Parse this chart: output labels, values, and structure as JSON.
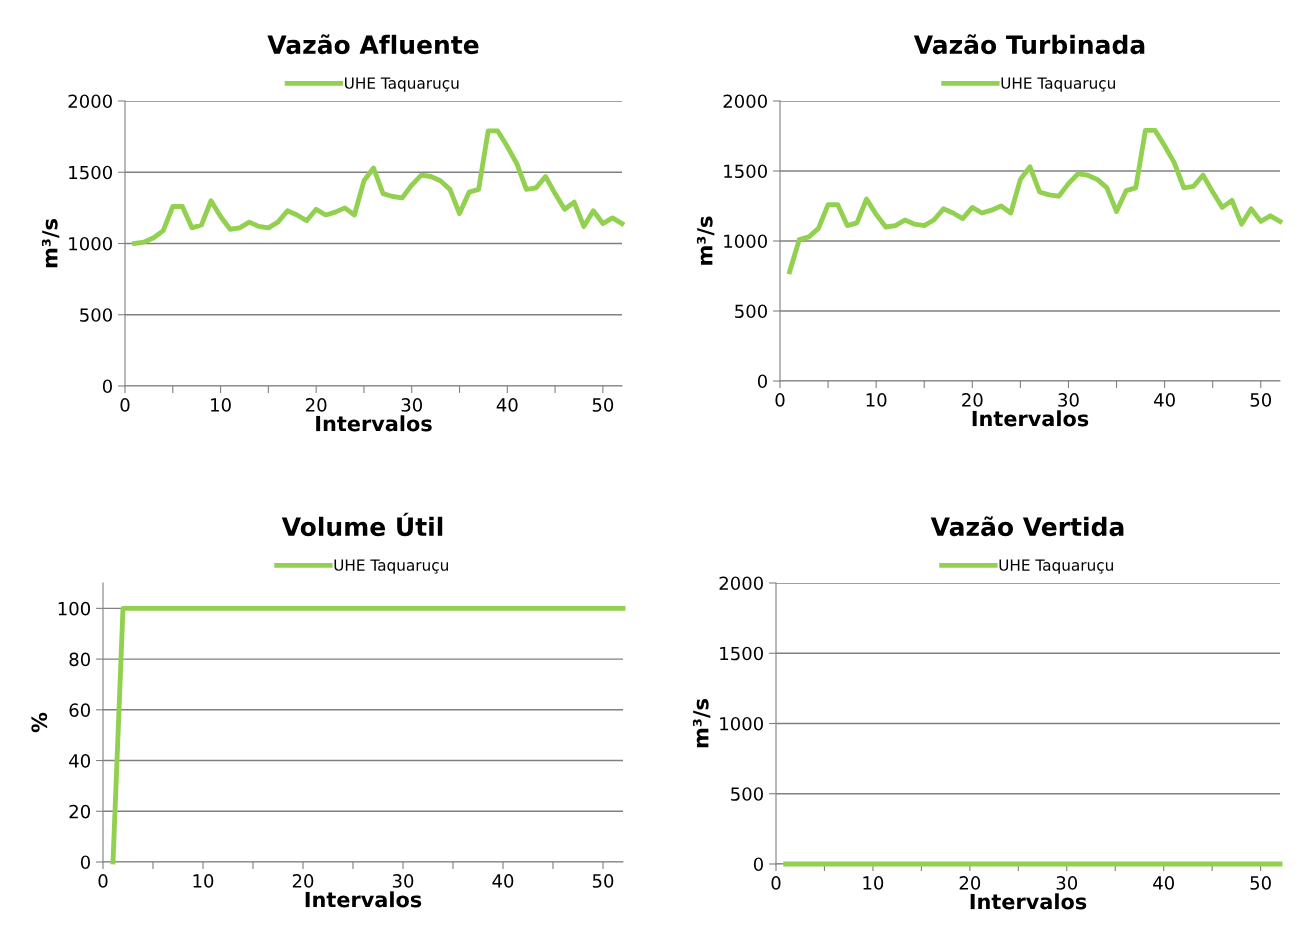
{
  "chart_data": [
    {
      "type": "line",
      "title": "Vazão Afluente",
      "xlabel": "Intervalos",
      "ylabel": "m³/s",
      "x": [
        1,
        2,
        3,
        4,
        5,
        6,
        7,
        8,
        9,
        10,
        11,
        12,
        13,
        14,
        15,
        16,
        17,
        18,
        19,
        20,
        21,
        22,
        23,
        24,
        25,
        26,
        27,
        28,
        29,
        30,
        31,
        32,
        33,
        34,
        35,
        36,
        37,
        38,
        39,
        40,
        41,
        42,
        43,
        44,
        45,
        46,
        47,
        48,
        49,
        50,
        51,
        52
      ],
      "series": [
        {
          "name": "UHE Taquaruçu",
          "color": "#92d050",
          "values": [
            1000,
            1010,
            1040,
            1090,
            1260,
            1260,
            1110,
            1130,
            1300,
            1190,
            1100,
            1110,
            1150,
            1120,
            1110,
            1150,
            1230,
            1200,
            1160,
            1240,
            1200,
            1220,
            1250,
            1200,
            1440,
            1530,
            1350,
            1330,
            1320,
            1410,
            1480,
            1470,
            1440,
            1380,
            1210,
            1360,
            1380,
            1790,
            1790,
            1680,
            1560,
            1380,
            1390,
            1470,
            1350,
            1240,
            1290,
            1120,
            1230,
            1140,
            1180,
            1140
          ]
        }
      ],
      "xlim": [
        0,
        52
      ],
      "xticks": [
        0,
        {
          "value": 5,
          "label": null
        },
        10,
        {
          "value": 15,
          "label": null
        },
        20,
        {
          "value": 25,
          "label": null
        },
        30,
        {
          "value": 35,
          "label": null
        },
        40,
        {
          "value": 45,
          "label": null
        },
        50
      ],
      "ylim": [
        0,
        2000
      ],
      "yticks": [
        0,
        500,
        1000,
        1500,
        2000
      ],
      "grid": "y",
      "legend": "top",
      "marker": "none",
      "line_style": "solid"
    },
    {
      "type": "line",
      "title": "Vazão Turbinada",
      "xlabel": "Intervalos",
      "ylabel": "m³/s",
      "x": [
        1,
        2,
        3,
        4,
        5,
        6,
        7,
        8,
        9,
        10,
        11,
        12,
        13,
        14,
        15,
        16,
        17,
        18,
        19,
        20,
        21,
        22,
        23,
        24,
        25,
        26,
        27,
        28,
        29,
        30,
        31,
        32,
        33,
        34,
        35,
        36,
        37,
        38,
        39,
        40,
        41,
        42,
        43,
        44,
        45,
        46,
        47,
        48,
        49,
        50,
        51,
        52
      ],
      "series": [
        {
          "name": "UHE Taquaruçu",
          "color": "#92d050",
          "values": [
            780,
            1010,
            1030,
            1090,
            1260,
            1260,
            1110,
            1130,
            1300,
            1190,
            1100,
            1110,
            1150,
            1120,
            1110,
            1150,
            1230,
            1200,
            1160,
            1240,
            1200,
            1220,
            1250,
            1200,
            1440,
            1530,
            1350,
            1330,
            1320,
            1410,
            1480,
            1470,
            1440,
            1380,
            1210,
            1360,
            1380,
            1790,
            1790,
            1680,
            1560,
            1380,
            1390,
            1470,
            1350,
            1240,
            1290,
            1120,
            1230,
            1140,
            1180,
            1140
          ]
        }
      ],
      "xlim": [
        0,
        52
      ],
      "xticks": [
        0,
        {
          "value": 5,
          "label": null
        },
        10,
        {
          "value": 15,
          "label": null
        },
        20,
        {
          "value": 25,
          "label": null
        },
        30,
        {
          "value": 35,
          "label": null
        },
        40,
        {
          "value": 45,
          "label": null
        },
        50
      ],
      "ylim": [
        0,
        2000
      ],
      "yticks": [
        0,
        500,
        1000,
        1500,
        2000
      ],
      "grid": "y",
      "legend": "top",
      "marker": "none",
      "line_style": "solid"
    },
    {
      "type": "line",
      "title": "Volume Útil",
      "xlabel": "Intervalos",
      "ylabel": "%",
      "x": [
        1,
        2,
        3,
        4,
        5,
        6,
        7,
        8,
        9,
        10,
        11,
        12,
        13,
        14,
        15,
        16,
        17,
        18,
        19,
        20,
        21,
        22,
        23,
        24,
        25,
        26,
        27,
        28,
        29,
        30,
        31,
        32,
        33,
        34,
        35,
        36,
        37,
        38,
        39,
        40,
        41,
        42,
        43,
        44,
        45,
        46,
        47,
        48,
        49,
        50,
        51,
        52
      ],
      "series": [
        {
          "name": "UHE Taquaruçu",
          "color": "#92d050",
          "values": [
            0,
            100,
            100,
            100,
            100,
            100,
            100,
            100,
            100,
            100,
            100,
            100,
            100,
            100,
            100,
            100,
            100,
            100,
            100,
            100,
            100,
            100,
            100,
            100,
            100,
            100,
            100,
            100,
            100,
            100,
            100,
            100,
            100,
            100,
            100,
            100,
            100,
            100,
            100,
            100,
            100,
            100,
            100,
            100,
            100,
            100,
            100,
            100,
            100,
            100,
            100,
            100
          ]
        }
      ],
      "xlim": [
        0,
        52
      ],
      "xticks": [
        0,
        {
          "value": 5,
          "label": null
        },
        10,
        {
          "value": 15,
          "label": null
        },
        20,
        {
          "value": 25,
          "label": null
        },
        30,
        {
          "value": 35,
          "label": null
        },
        40,
        {
          "value": 45,
          "label": null
        },
        50
      ],
      "ylim": [
        0,
        110
      ],
      "yticks": [
        0,
        20,
        40,
        60,
        80,
        100
      ],
      "grid": "y",
      "legend": "top",
      "marker": "none",
      "line_style": "solid"
    },
    {
      "type": "line",
      "title": "Vazão Vertida",
      "xlabel": "Intervalos",
      "ylabel": "m³/s",
      "x": [
        1,
        2,
        3,
        4,
        5,
        6,
        7,
        8,
        9,
        10,
        11,
        12,
        13,
        14,
        15,
        16,
        17,
        18,
        19,
        20,
        21,
        22,
        23,
        24,
        25,
        26,
        27,
        28,
        29,
        30,
        31,
        32,
        33,
        34,
        35,
        36,
        37,
        38,
        39,
        40,
        41,
        42,
        43,
        44,
        45,
        46,
        47,
        48,
        49,
        50,
        51,
        52
      ],
      "series": [
        {
          "name": "UHE Taquaruçu",
          "color": "#92d050",
          "values": [
            0,
            0,
            0,
            0,
            0,
            0,
            0,
            0,
            0,
            0,
            0,
            0,
            0,
            0,
            0,
            0,
            0,
            0,
            0,
            0,
            0,
            0,
            0,
            0,
            0,
            0,
            0,
            0,
            0,
            0,
            0,
            0,
            0,
            0,
            0,
            0,
            0,
            0,
            0,
            0,
            0,
            0,
            0,
            0,
            0,
            0,
            0,
            0,
            0,
            0,
            0,
            0
          ]
        }
      ],
      "xlim": [
        0,
        52
      ],
      "xticks": [
        0,
        {
          "value": 5,
          "label": null
        },
        10,
        {
          "value": 15,
          "label": null
        },
        20,
        {
          "value": 25,
          "label": null
        },
        30,
        {
          "value": 35,
          "label": null
        },
        40,
        {
          "value": 45,
          "label": null
        },
        50
      ],
      "ylim": [
        0,
        2000
      ],
      "yticks": [
        0,
        500,
        1000,
        1500,
        2000
      ],
      "grid": "y",
      "legend": "top",
      "marker": "none",
      "line_style": "solid"
    }
  ]
}
